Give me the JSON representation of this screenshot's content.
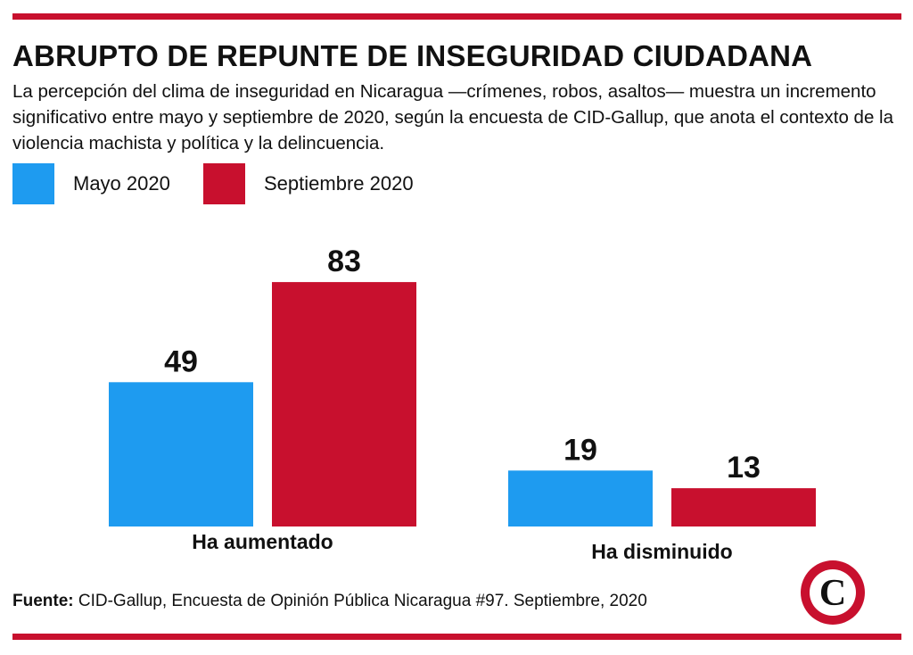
{
  "header": {
    "title": "ABRUPTO DE REPUNTE DE INSEGURIDAD CIUDADANA",
    "subtitle": "La percepción del clima de inseguridad en Nicaragua —crímenes, robos, asaltos— muestra un incremento significativo entre mayo y septiembre de 2020, según la encuesta de CID-Gallup, que anota el contexto de la violencia machista y política y la delincuencia."
  },
  "colors": {
    "rule": "#c8102e",
    "mayo": "#1e9bf0",
    "septiembre": "#c8102e",
    "logo_ring": "#c8102e"
  },
  "chart_data": {
    "type": "bar",
    "categories": [
      "Ha aumentado",
      "Ha disminuido"
    ],
    "series": [
      {
        "name": "Mayo 2020",
        "color": "#1e9bf0",
        "values": [
          49,
          19
        ]
      },
      {
        "name": "Septiembre 2020",
        "color": "#c8102e",
        "values": [
          83,
          13
        ]
      }
    ],
    "value_labels": [
      [
        "49",
        "19"
      ],
      [
        "83",
        "13"
      ]
    ],
    "legend_position": "top-left",
    "grid": false
  },
  "footer": {
    "source_label": "Fuente:",
    "source_text": " CID-Gallup, Encuesta de Opinión Pública Nicaragua #97. Septiembre, 2020",
    "logo_letter": "C"
  }
}
